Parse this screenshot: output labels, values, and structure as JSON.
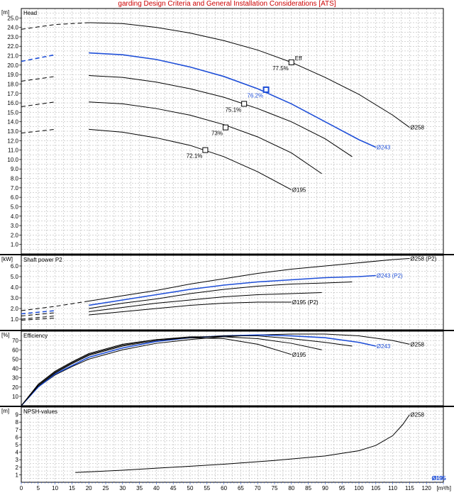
{
  "title_truncated": "garding Design Criteria and General Installation Considerations [ATS]",
  "x_axis": {
    "unit": "[m³/h]",
    "ticks": [
      0,
      5,
      10,
      15,
      20,
      25,
      30,
      35,
      40,
      45,
      50,
      55,
      60,
      65,
      70,
      75,
      80,
      85,
      90,
      95,
      100,
      105,
      110,
      115,
      120
    ]
  },
  "panels": [
    {
      "id": "head",
      "label": "Head",
      "unit": "[m]",
      "ylim": [
        0,
        26
      ],
      "yticks": [
        1.0,
        2.0,
        3.0,
        4.0,
        5.0,
        6.0,
        7.0,
        8.0,
        9.0,
        10.0,
        11.0,
        12.0,
        13.0,
        14.0,
        15.0,
        16.0,
        17.0,
        18.0,
        19.0,
        20.0,
        21.0,
        22.0,
        23.0,
        24.0,
        25.0
      ]
    },
    {
      "id": "power",
      "label": "Shaft power P2",
      "unit": "[kW]",
      "ylim": [
        0,
        7
      ],
      "yticks": [
        1.0,
        2.0,
        3.0,
        4.0,
        5.0,
        6.0
      ]
    },
    {
      "id": "eff",
      "label": "Efficiency",
      "unit": "[%]",
      "ylim": [
        0,
        80
      ],
      "yticks": [
        10,
        20,
        30,
        40,
        50,
        60,
        70
      ]
    },
    {
      "id": "npsh",
      "label": "NPSH-values",
      "unit": "[m]",
      "ylim": [
        0,
        10
      ],
      "yticks": [
        1,
        2,
        3,
        4,
        5,
        6,
        7,
        8,
        9
      ]
    }
  ],
  "colors": {
    "primary": "#000000",
    "selected": "#1f4fd8",
    "grid": "#a9a9a9"
  },
  "chart_data": {
    "type": "line",
    "xlabel": "[m³/h]",
    "xlim": [
      0,
      125
    ],
    "head": {
      "series": [
        {
          "name": "Ø258",
          "selected": false,
          "label_text": "Ø258",
          "dashed_to": 20,
          "x": [
            0,
            10,
            20,
            30,
            40,
            50,
            60,
            70,
            80,
            90,
            100,
            110,
            115
          ],
          "y": [
            23.8,
            24.3,
            24.5,
            24.4,
            24.0,
            23.4,
            22.6,
            21.6,
            20.3,
            18.7,
            16.9,
            14.7,
            13.4
          ]
        },
        {
          "name": "Ø243",
          "selected": true,
          "label_text": "Ø243",
          "dashed_to": 15,
          "x": [
            0,
            10,
            20,
            30,
            40,
            50,
            60,
            70,
            80,
            90,
            100,
            105
          ],
          "y": [
            20.4,
            21.1,
            21.3,
            21.1,
            20.6,
            19.8,
            18.8,
            17.5,
            15.9,
            14.0,
            12.1,
            11.3
          ]
        },
        {
          "name": "",
          "selected": false,
          "label_text": "",
          "dashed_to": 15,
          "x": [
            0,
            10,
            20,
            30,
            40,
            50,
            60,
            70,
            80,
            90,
            98
          ],
          "y": [
            18.3,
            18.8,
            18.9,
            18.7,
            18.2,
            17.5,
            16.6,
            15.4,
            14.0,
            12.2,
            10.3
          ]
        },
        {
          "name": "",
          "selected": false,
          "label_text": "",
          "dashed_to": 15,
          "x": [
            0,
            10,
            20,
            30,
            40,
            50,
            60,
            70,
            80,
            89
          ],
          "y": [
            15.6,
            16.1,
            16.1,
            15.9,
            15.4,
            14.7,
            13.7,
            12.4,
            10.7,
            8.5
          ]
        },
        {
          "name": "Ø195",
          "selected": false,
          "label_text": "Ø195",
          "dashed_to": 15,
          "x": [
            0,
            10,
            20,
            30,
            40,
            50,
            60,
            70,
            80
          ],
          "y": [
            12.8,
            13.2,
            13.2,
            12.9,
            12.3,
            11.5,
            10.3,
            8.7,
            6.8
          ]
        }
      ],
      "markers": [
        {
          "x": 80,
          "y": 20.3,
          "label": "77.5%",
          "selected": false
        },
        {
          "x": 72.5,
          "y": 17.4,
          "label": "76.2%",
          "selected": true
        },
        {
          "x": 66,
          "y": 15.9,
          "label": "75.1%",
          "selected": false
        },
        {
          "x": 60.5,
          "y": 13.4,
          "label": "73%",
          "selected": false
        },
        {
          "x": 54.5,
          "y": 11.0,
          "label": "72.1%",
          "selected": false
        }
      ],
      "annotation": "Eff"
    },
    "power": {
      "series": [
        {
          "name": "Ø258 (P2)",
          "selected": false,
          "label_text": "Ø258 (P2)",
          "dashed_to": 20,
          "x": [
            0,
            10,
            20,
            30,
            40,
            50,
            60,
            70,
            80,
            90,
            100,
            110,
            115
          ],
          "y": [
            1.8,
            2.2,
            2.7,
            3.2,
            3.7,
            4.3,
            4.8,
            5.3,
            5.7,
            6.0,
            6.3,
            6.6,
            6.7
          ]
        },
        {
          "name": "Ø243 (P2)",
          "selected": true,
          "label_text": "Ø243 (P2)",
          "dashed_to": 15,
          "x": [
            0,
            10,
            20,
            30,
            40,
            50,
            60,
            70,
            80,
            90,
            100,
            105
          ],
          "y": [
            1.5,
            1.8,
            2.3,
            2.8,
            3.3,
            3.8,
            4.2,
            4.5,
            4.7,
            4.9,
            5.0,
            5.1
          ]
        },
        {
          "name": "",
          "selected": false,
          "label_text": "",
          "dashed_to": 15,
          "x": [
            0,
            10,
            20,
            30,
            40,
            50,
            60,
            70,
            80,
            90,
            98
          ],
          "y": [
            1.3,
            1.6,
            2.0,
            2.5,
            2.9,
            3.4,
            3.8,
            4.1,
            4.3,
            4.4,
            4.5
          ]
        },
        {
          "name": "",
          "selected": false,
          "label_text": "",
          "dashed_to": 15,
          "x": [
            0,
            10,
            20,
            30,
            40,
            50,
            60,
            70,
            80,
            89
          ],
          "y": [
            1.0,
            1.3,
            1.7,
            2.1,
            2.5,
            2.8,
            3.1,
            3.3,
            3.4,
            3.5
          ]
        },
        {
          "name": "Ø195 (P2)",
          "selected": false,
          "label_text": "Ø195 (P2)",
          "dashed_to": 15,
          "x": [
            0,
            10,
            20,
            30,
            40,
            50,
            60,
            70,
            80
          ],
          "y": [
            0.9,
            1.1,
            1.4,
            1.7,
            2.0,
            2.3,
            2.5,
            2.6,
            2.6
          ]
        }
      ]
    },
    "efficiency": {
      "series": [
        {
          "name": "Ø258",
          "selected": false,
          "label_text": "Ø258",
          "x": [
            0,
            5,
            10,
            15,
            20,
            30,
            40,
            50,
            60,
            70,
            80,
            90,
            100,
            110,
            115
          ],
          "y": [
            0,
            20,
            33,
            42,
            50,
            60,
            67,
            71,
            74,
            76,
            77,
            77,
            75,
            70,
            66
          ]
        },
        {
          "name": "Ø243",
          "selected": true,
          "label_text": "Ø243",
          "x": [
            0,
            5,
            10,
            15,
            20,
            30,
            40,
            50,
            60,
            70,
            80,
            90,
            100,
            105
          ],
          "y": [
            0,
            20,
            34,
            43,
            52,
            62,
            69,
            73,
            75,
            76,
            75,
            73,
            68,
            64
          ]
        },
        {
          "name": "",
          "selected": false,
          "label_text": "",
          "x": [
            0,
            5,
            10,
            15,
            20,
            30,
            40,
            50,
            60,
            70,
            80,
            90,
            98
          ],
          "y": [
            0,
            21,
            35,
            45,
            54,
            64,
            70,
            73,
            75,
            75,
            72,
            68,
            64
          ]
        },
        {
          "name": "",
          "selected": false,
          "label_text": "",
          "x": [
            0,
            5,
            10,
            15,
            20,
            30,
            40,
            50,
            60,
            70,
            80,
            89
          ],
          "y": [
            0,
            22,
            36,
            46,
            55,
            65,
            71,
            74,
            74,
            72,
            67,
            60
          ]
        },
        {
          "name": "Ø195",
          "selected": false,
          "label_text": "Ø195",
          "x": [
            0,
            5,
            10,
            15,
            20,
            30,
            40,
            50,
            60,
            70,
            80
          ],
          "y": [
            0,
            23,
            37,
            47,
            56,
            66,
            71,
            73,
            72,
            66,
            55
          ]
        }
      ]
    },
    "npsh": {
      "series": [
        {
          "name": "Ø258",
          "selected": false,
          "label_text": "Ø258",
          "x": [
            16,
            30,
            45,
            60,
            75,
            90,
            100,
            105,
            110,
            113,
            115
          ],
          "y": [
            1.3,
            1.6,
            2.0,
            2.4,
            2.9,
            3.5,
            4.2,
            4.9,
            6.2,
            7.7,
            9.0
          ]
        }
      ],
      "corner_label": "Ø195"
    }
  }
}
